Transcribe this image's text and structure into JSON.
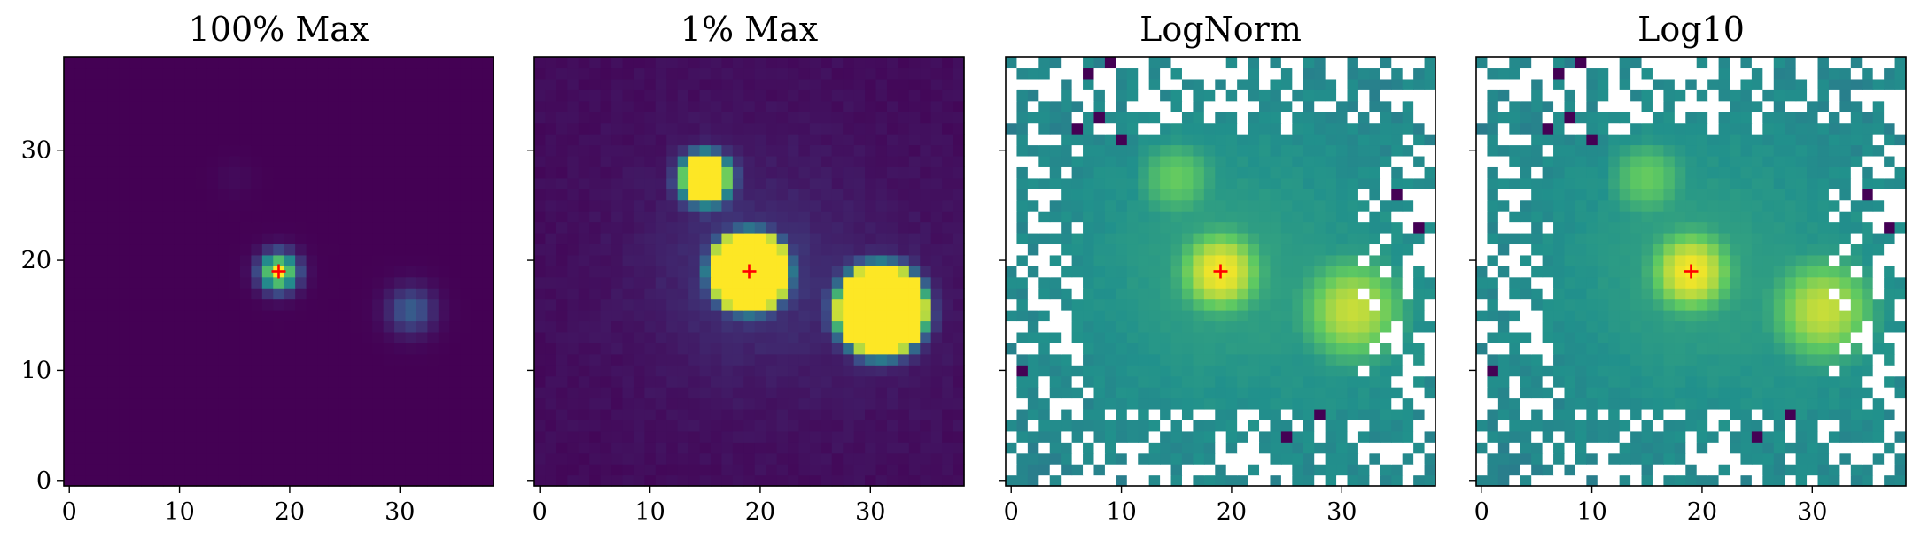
{
  "figure": {
    "grid_size": 39,
    "colormap": [
      "#440154",
      "#3b528b",
      "#21918c",
      "#5ec962",
      "#fde725"
    ],
    "missing_color": "#ffffff",
    "marker_color": "#ff0000",
    "marker": "+"
  },
  "chart_data": [
    {
      "type": "heatmap",
      "title": "100% Max",
      "norm": "linear",
      "vmax_fraction": 1.0,
      "xlim": [
        -0.5,
        38.5
      ],
      "ylim": [
        -0.5,
        38.5
      ],
      "xticks": [
        0,
        10,
        20,
        30
      ],
      "yticks": [
        0,
        10,
        20,
        30
      ],
      "show_yticklabels": true,
      "marker_xy": [
        19,
        19
      ]
    },
    {
      "type": "heatmap",
      "title": "1% Max",
      "norm": "linear",
      "vmax_fraction": 0.01,
      "xlim": [
        -0.5,
        38.5
      ],
      "ylim": [
        -0.5,
        38.5
      ],
      "xticks": [
        0,
        10,
        20,
        30
      ],
      "yticks": [
        0,
        10,
        20,
        30
      ],
      "show_yticklabels": false,
      "marker_xy": [
        19,
        19
      ]
    },
    {
      "type": "heatmap",
      "title": "LogNorm",
      "norm": "log",
      "xlim": [
        -0.5,
        38.5
      ],
      "ylim": [
        -0.5,
        38.5
      ],
      "xticks": [
        0,
        10,
        20,
        30
      ],
      "yticks": [
        0,
        10,
        20,
        30
      ],
      "show_yticklabels": false,
      "marker_xy": [
        19,
        19
      ]
    },
    {
      "type": "heatmap",
      "title": "Log10",
      "norm": "log10",
      "xlim": [
        -0.5,
        38.5
      ],
      "ylim": [
        -0.5,
        38.5
      ],
      "xticks": [
        0,
        10,
        20,
        30
      ],
      "yticks": [
        0,
        10,
        20,
        30
      ],
      "show_yticklabels": false,
      "marker_xy": [
        19,
        19
      ]
    }
  ],
  "sources": [
    {
      "x": 19,
      "y": 19,
      "amp": 1.0,
      "sigma": 1.15
    },
    {
      "x": 31,
      "y": 15.5,
      "amp": 0.3,
      "sigma": 1.5
    },
    {
      "x": 15,
      "y": 27.5,
      "amp": 0.03,
      "sigma": 1.2
    }
  ]
}
